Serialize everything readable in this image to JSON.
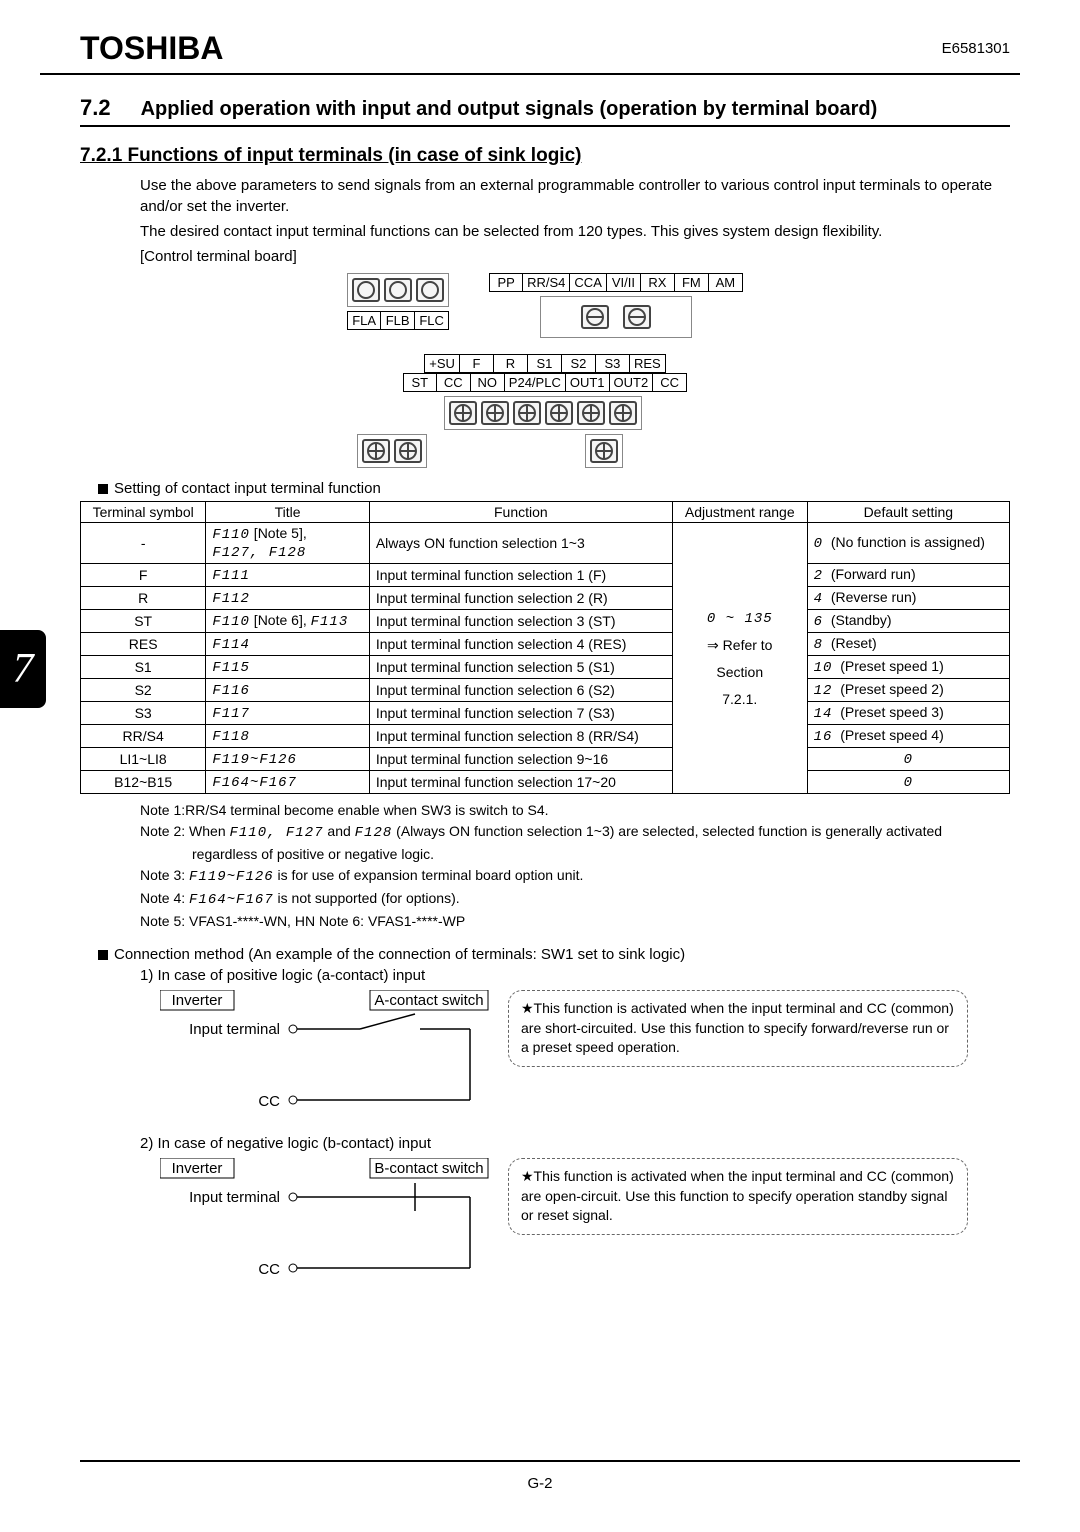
{
  "header": {
    "brand": "TOSHIBA",
    "docnum": "E6581301"
  },
  "section": {
    "num": "7.2",
    "title": "Applied operation with input and output signals (operation by terminal board)"
  },
  "subsection": {
    "num_title": "7.2.1  Functions of input terminals (in case of sink logic)",
    "para1": "Use the above parameters to send signals from an external programmable controller to various control input terminals to operate and/or set the inverter.",
    "para2": "The desired contact input terminal functions can be selected from 120 types. This gives system design flexibility.",
    "para3": "[Control terminal board]"
  },
  "diagram": {
    "row1_a": [
      "FLA",
      "FLB",
      "FLC"
    ],
    "row1_b": [
      "PP",
      "RR/S4",
      "CCA",
      "VI/II",
      "RX",
      "FM",
      "AM"
    ],
    "row2_a": [
      "+SU",
      "F",
      "R",
      "S1",
      "S2",
      "S3",
      "RES"
    ],
    "row2_b": [
      "ST",
      "CC",
      "NO",
      "P24/PLC",
      "OUT1",
      "OUT2",
      "CC"
    ]
  },
  "table": {
    "head_setting": "Setting of contact input terminal function",
    "columns": [
      "Terminal symbol",
      "Title",
      "Function",
      "Adjustment range",
      "Default setting"
    ],
    "adj_range_1": "0 ~ 135",
    "adj_range_2": "⇒ Refer to",
    "adj_range_3": "Section",
    "adj_range_4": "7.2.1.",
    "rows": [
      {
        "sym": "-",
        "title_seg": "F110",
        "title_note": " [Note 5],",
        "title_seg2": "F127, F128",
        "func": "Always ON function selection 1~3",
        "def_code": "0",
        "def_text": "(No function is assigned)"
      },
      {
        "sym": "F",
        "title_seg": "F111",
        "func": "Input terminal function selection 1 (F)",
        "def_code": "2",
        "def_text": "(Forward run)"
      },
      {
        "sym": "R",
        "title_seg": "F112",
        "func": "Input terminal function selection 2 (R)",
        "def_code": "4",
        "def_text": "(Reverse run)"
      },
      {
        "sym": "ST",
        "title_seg": "F110",
        "title_note": " [Note 6], ",
        "title_seg2": "F113",
        "func": "Input terminal function selection 3 (ST)",
        "def_code": "6",
        "def_text": "(Standby)"
      },
      {
        "sym": "RES",
        "title_seg": "F114",
        "func": "Input terminal function selection 4 (RES)",
        "def_code": "8",
        "def_text": "(Reset)"
      },
      {
        "sym": "S1",
        "title_seg": "F115",
        "func": "Input terminal function selection 5 (S1)",
        "def_code": "10",
        "def_text": "(Preset speed 1)"
      },
      {
        "sym": "S2",
        "title_seg": "F116",
        "func": "Input terminal function selection 6 (S2)",
        "def_code": "12",
        "def_text": "(Preset speed 2)"
      },
      {
        "sym": "S3",
        "title_seg": "F117",
        "func": "Input terminal function selection 7 (S3)",
        "def_code": "14",
        "def_text": "(Preset speed 3)"
      },
      {
        "sym": "RR/S4",
        "title_seg": "F118",
        "func": "Input terminal function selection 8 (RR/S4)",
        "def_code": "16",
        "def_text": "(Preset speed 4)"
      },
      {
        "sym": "LI1~LI8",
        "title_seg": "F119~F126",
        "func": "Input terminal function selection 9~16",
        "def_code": "0",
        "def_text": ""
      },
      {
        "sym": "B12~B15",
        "title_seg": "F164~F167",
        "func": "Input terminal function selection 17~20",
        "def_code": "0",
        "def_text": ""
      }
    ]
  },
  "notes": {
    "n1": "Note 1:RR/S4 terminal become enable when SW3 is switch to S4.",
    "n2a": "Note 2: When ",
    "n2seg": "F110, F127",
    "n2b": " and ",
    "n2seg2": "F128",
    "n2c": " (Always ON function selection 1~3) are selected, selected function is generally activated regardless of positive or negative logic.",
    "n3a": "Note 3: ",
    "n3seg": "F119~F126",
    "n3b": " is for use of expansion terminal board option unit.",
    "n4a": "Note 4: ",
    "n4seg": "F164~F167",
    "n4b": " is not supported (for options).",
    "n5": "Note 5: VFAS1-****-WN, HN    Note 6: VFAS1-****-WP"
  },
  "connection": {
    "head": "Connection method (An example of the connection of terminals: SW1 set to sink logic)",
    "case1": "1) In case of positive logic (a-contact) input",
    "inv": "Inverter",
    "a_switch": "A-contact switch",
    "input_terminal": "Input terminal",
    "cc": "CC",
    "hint1": "★This function is activated when the input terminal and CC (common) are short-circuited. Use this function to specify forward/reverse run or a preset speed operation.",
    "case2": "2) In case of negative logic (b-contact) input",
    "b_switch": "B-contact switch",
    "hint2": "★This function is activated when the input terminal and CC (common) are open-circuit. Use this function to specify operation standby signal or reset signal."
  },
  "chapter_tab": "7",
  "page_num": "G-2"
}
